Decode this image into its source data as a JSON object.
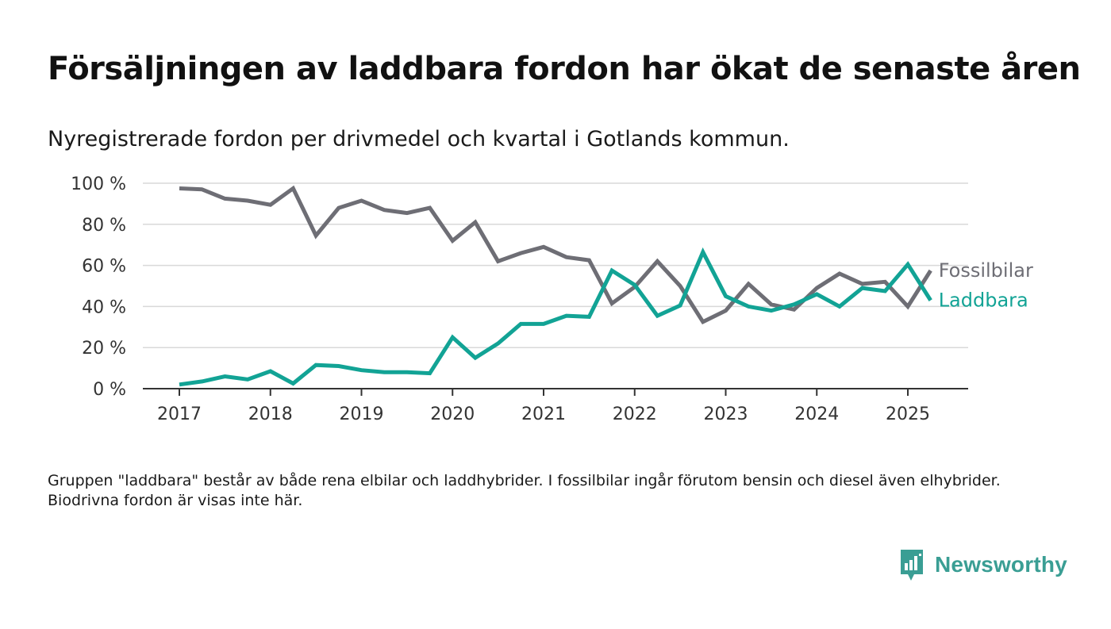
{
  "title": "Försäljningen av laddbara fordon har ökat de senaste åren",
  "subtitle": "Nyregistrerade fordon per drivmedel och kvartal i Gotlands kommun.",
  "note": "Gruppen \"laddbara\" består av både rena elbilar och laddhybrider. I fossilbilar ingår förutom bensin och diesel även elhybrider. Biodrivna fordon är visas inte här.",
  "brand": {
    "name": "Newsworthy",
    "icon": "newsworthy-logo-icon",
    "color": "#3a9e94"
  },
  "chart_data": {
    "type": "line",
    "x": [
      "2017 Q1",
      "2017 Q2",
      "2017 Q3",
      "2017 Q4",
      "2018 Q1",
      "2018 Q2",
      "2018 Q3",
      "2018 Q4",
      "2019 Q1",
      "2019 Q2",
      "2019 Q3",
      "2019 Q4",
      "2020 Q1",
      "2020 Q2",
      "2020 Q3",
      "2020 Q4",
      "2021 Q1",
      "2021 Q2",
      "2021 Q3",
      "2021 Q4",
      "2022 Q1",
      "2022 Q2",
      "2022 Q3",
      "2022 Q4",
      "2023 Q1",
      "2023 Q2",
      "2023 Q3",
      "2023 Q4",
      "2024 Q1",
      "2024 Q2",
      "2024 Q3",
      "2024 Q4",
      "2025 Q1",
      "2025 Q2"
    ],
    "x_ticks": [
      "2017",
      "2018",
      "2019",
      "2020",
      "2021",
      "2022",
      "2023",
      "2024",
      "2025"
    ],
    "y_ticks": [
      "0 %",
      "20 %",
      "40 %",
      "60 %",
      "80 %",
      "100 %"
    ],
    "ylim": [
      0,
      100
    ],
    "grid": true,
    "series": [
      {
        "name": "Fossilbilar",
        "color": "#6e6e75",
        "values": [
          97.5,
          97,
          92.5,
          91.5,
          89.5,
          97.5,
          74.5,
          88,
          91.5,
          87,
          85.5,
          88,
          72,
          81,
          62,
          66,
          69,
          64,
          62.5,
          41.5,
          49.5,
          62,
          50,
          32.5,
          38,
          51,
          41,
          38.5,
          49,
          56,
          51,
          52,
          40,
          57.5
        ]
      },
      {
        "name": "Laddbara",
        "color": "#12a395",
        "values": [
          2,
          3.5,
          6,
          4.5,
          8.5,
          2.5,
          11.5,
          11,
          9,
          8,
          8,
          7.5,
          25,
          15,
          22,
          31.5,
          31.5,
          35.5,
          35,
          57.5,
          50.5,
          35.5,
          40.5,
          66.5,
          45,
          40,
          38,
          41,
          46,
          40,
          49,
          47.5,
          60.5,
          43
        ]
      }
    ]
  }
}
